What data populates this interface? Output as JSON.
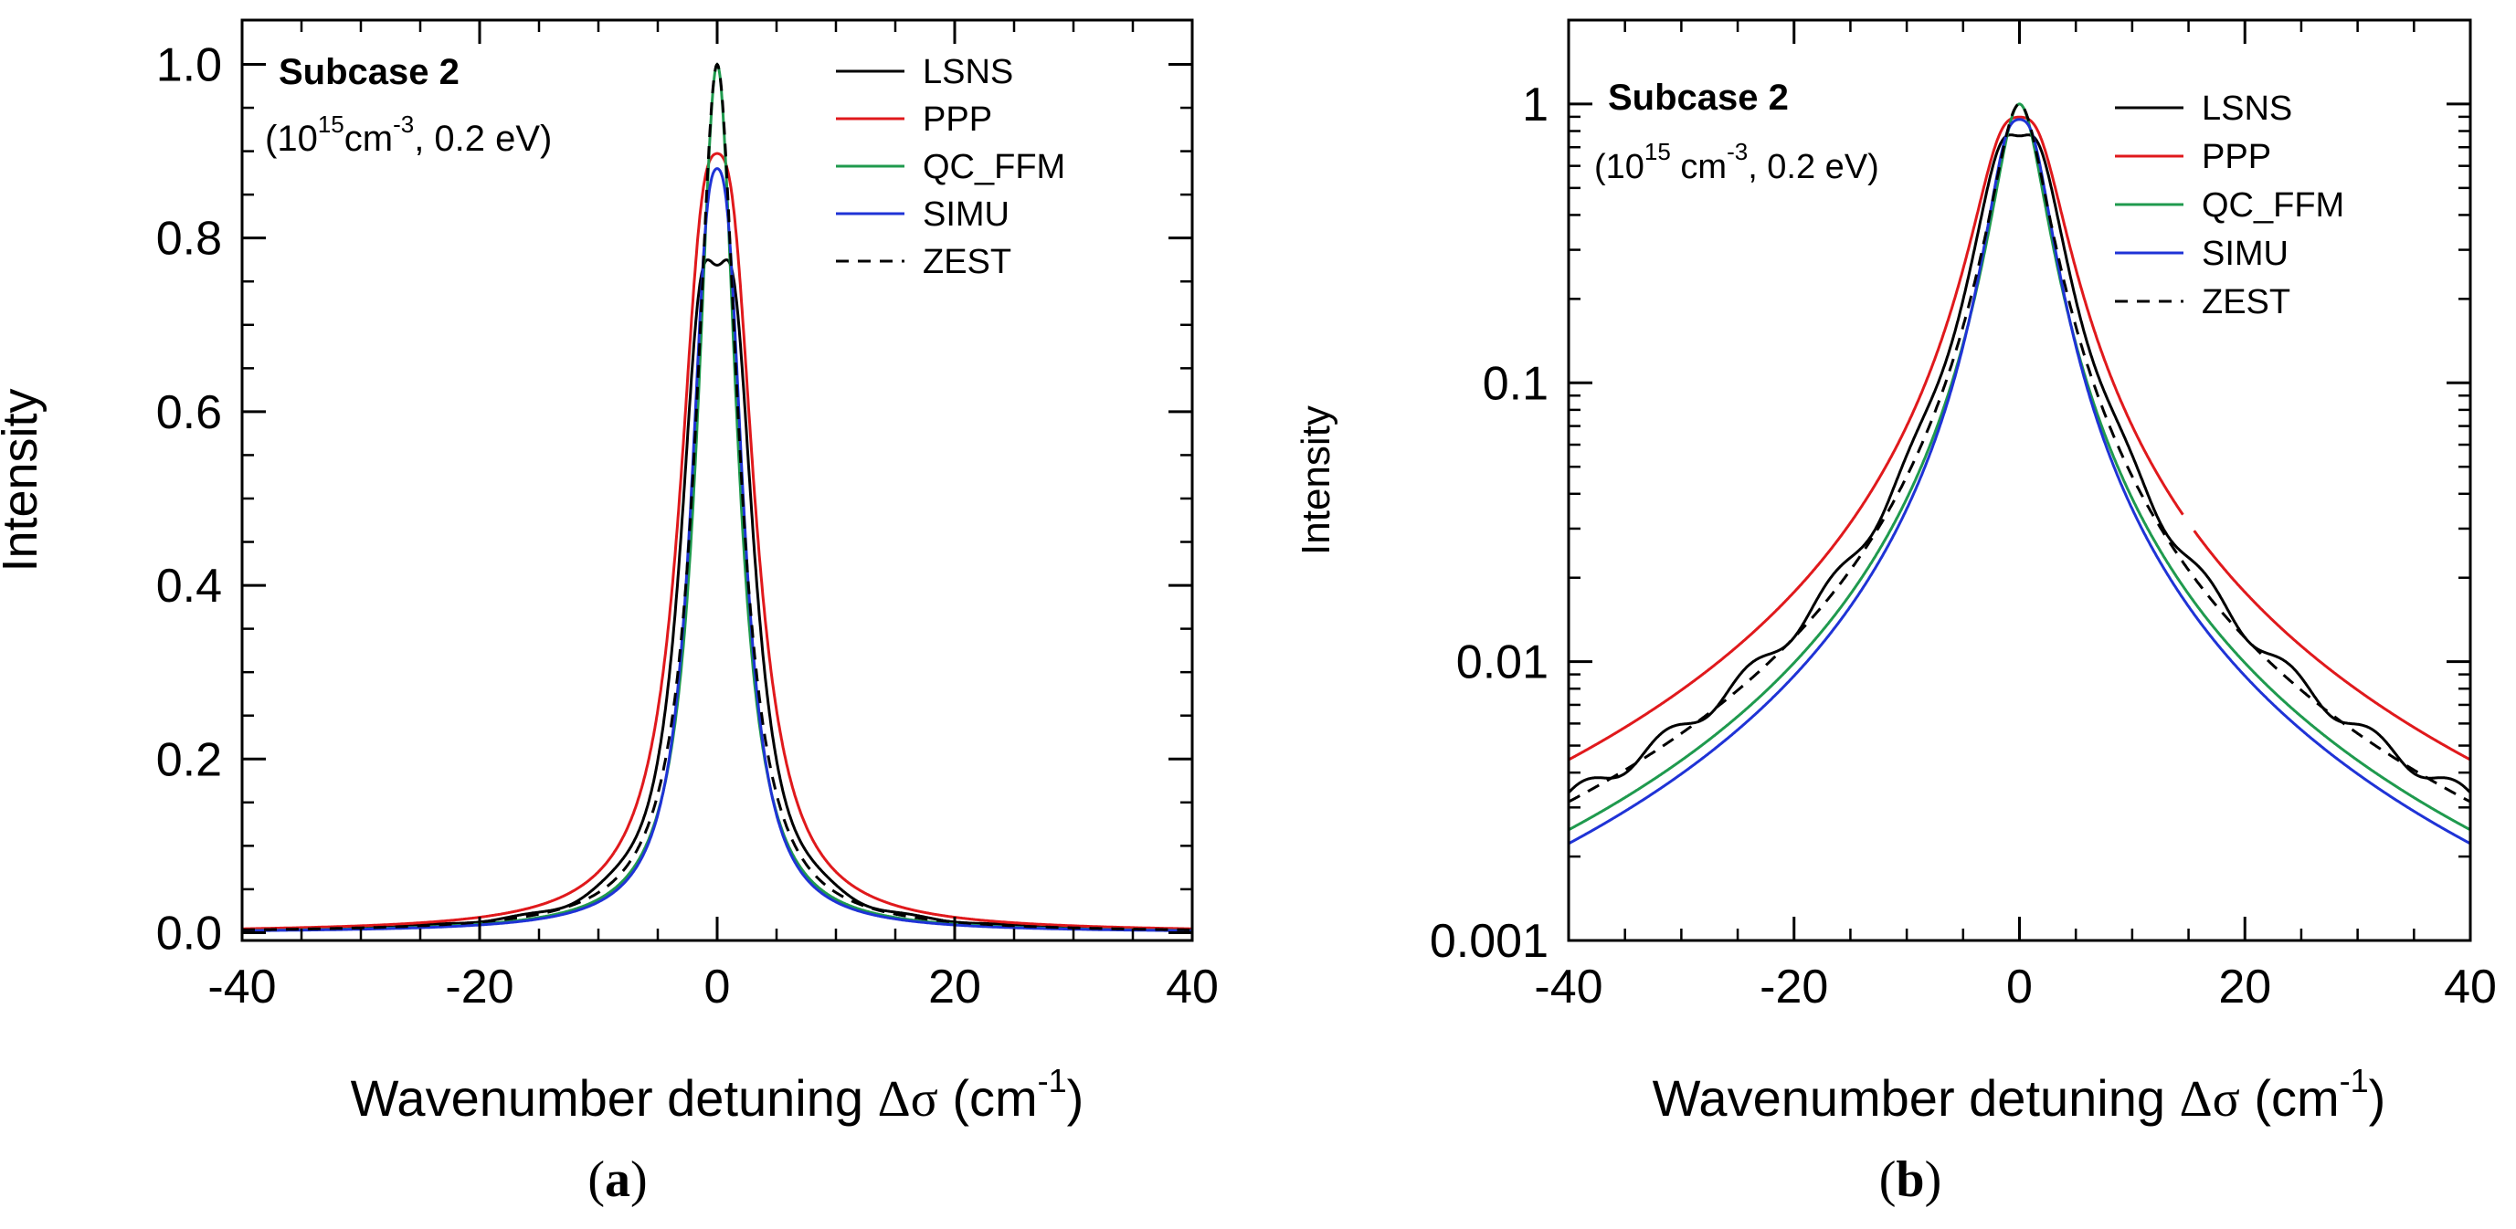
{
  "chart_data": [
    {
      "id": "a",
      "type": "line",
      "yscale": "linear",
      "panel_label": "a",
      "annotation": {
        "title": "Subcase 2",
        "cond_prefix": "(10",
        "cond_exp": "15",
        "cond_unit": "cm",
        "cond_unit_exp": "-3",
        "cond_tail": ", 0.2 eV)"
      },
      "xlabel": {
        "text": "Wavenumber detuning ",
        "symbol": "Δσ",
        "unit": " (cm",
        "unit_exp": "-1",
        "close": ")"
      },
      "ylabel": "Intensity",
      "xlim": [
        -40,
        40
      ],
      "ylim": [
        0,
        1.0
      ],
      "xticks": [
        -40,
        -20,
        0,
        20,
        40
      ],
      "xtick_labels": [
        "-40",
        "-20",
        "0",
        "20",
        "40"
      ],
      "yticks": [
        0,
        0.2,
        0.4,
        0.6,
        0.8,
        1.0
      ],
      "ytick_labels": [
        "0.0",
        "0.2",
        "0.4",
        "0.6",
        "0.8",
        "1.0"
      ],
      "legend_position": "top-right",
      "series": [
        {
          "name": "LSNS",
          "color": "#000000",
          "dash": "solid",
          "model": "lsns"
        },
        {
          "name": "PPP",
          "color": "#e0191c",
          "dash": "solid",
          "model": "ppp"
        },
        {
          "name": "QC_FFM",
          "color": "#1f9a4e",
          "dash": "solid",
          "model": "qc"
        },
        {
          "name": "SIMU",
          "color": "#1f33d6",
          "dash": "solid",
          "model": "simu"
        },
        {
          "name": "ZEST",
          "color": "#000000",
          "dash": "dashed",
          "model": "zest"
        }
      ]
    },
    {
      "id": "b",
      "type": "line",
      "yscale": "log",
      "panel_label": "b",
      "annotation": {
        "title": "Subcase 2",
        "cond_prefix": "(10",
        "cond_exp": "15",
        "cond_unit": " cm",
        "cond_unit_exp": "-3",
        "cond_tail": ", 0.2 eV)"
      },
      "xlabel": {
        "text": "Wavenumber detuning ",
        "symbol": "Δσ",
        "unit": " (cm",
        "unit_exp": "-1",
        "close": ")"
      },
      "ylabel": "Intensity",
      "xlim": [
        -40,
        40
      ],
      "ylim": [
        0.001,
        2.0
      ],
      "xticks": [
        -40,
        -20,
        0,
        20,
        40
      ],
      "xtick_labels": [
        "-40",
        "-20",
        "0",
        "20",
        "40"
      ],
      "yticks": [
        0.001,
        0.01,
        0.1,
        1
      ],
      "ytick_labels": [
        "0.001",
        "0.01",
        "0.1",
        "1"
      ],
      "legend_position": "top-right",
      "series": [
        {
          "name": "LSNS",
          "color": "#000000",
          "dash": "solid",
          "model": "lsns"
        },
        {
          "name": "PPP",
          "color": "#e0191c",
          "dash": "solid",
          "model": "ppp",
          "gap": [
            14.5,
            15.5
          ]
        },
        {
          "name": "QC_FFM",
          "color": "#1f9a4e",
          "dash": "solid",
          "model": "qc"
        },
        {
          "name": "SIMU",
          "color": "#1f33d6",
          "dash": "solid",
          "model": "simu"
        },
        {
          "name": "ZEST",
          "color": "#000000",
          "dash": "dashed",
          "model": "zest"
        }
      ]
    }
  ]
}
